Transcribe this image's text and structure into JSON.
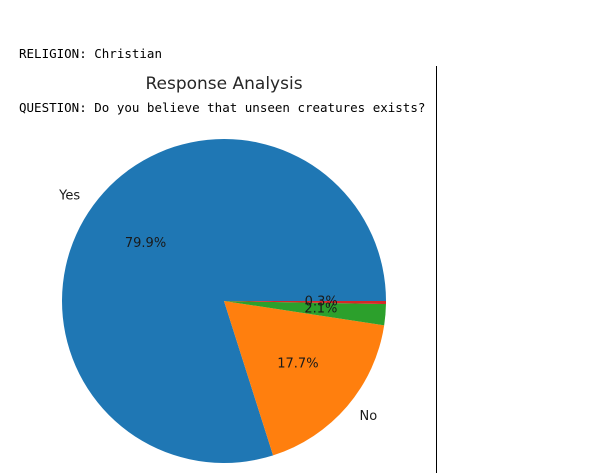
{
  "header": {
    "religion_line": "RELIGION: Christian",
    "question_line": "QUESTION: Do you believe that unseen creatures exists?"
  },
  "chart_data": {
    "type": "pie",
    "title": "Response Analysis",
    "slices": [
      {
        "label": "Yes",
        "value": 79.9,
        "pct_label": "79.9%",
        "color": "#1f77b4"
      },
      {
        "label": "No",
        "value": 17.7,
        "pct_label": "17.7%",
        "color": "#ff7f0e"
      },
      {
        "label": "",
        "value": 2.1,
        "pct_label": "2.1%",
        "color": "#2ca02c"
      },
      {
        "label": "",
        "value": 0.3,
        "pct_label": "0.3%",
        "color": "#d62728"
      }
    ],
    "direction": "counterclockwise",
    "start_angle": 0
  }
}
